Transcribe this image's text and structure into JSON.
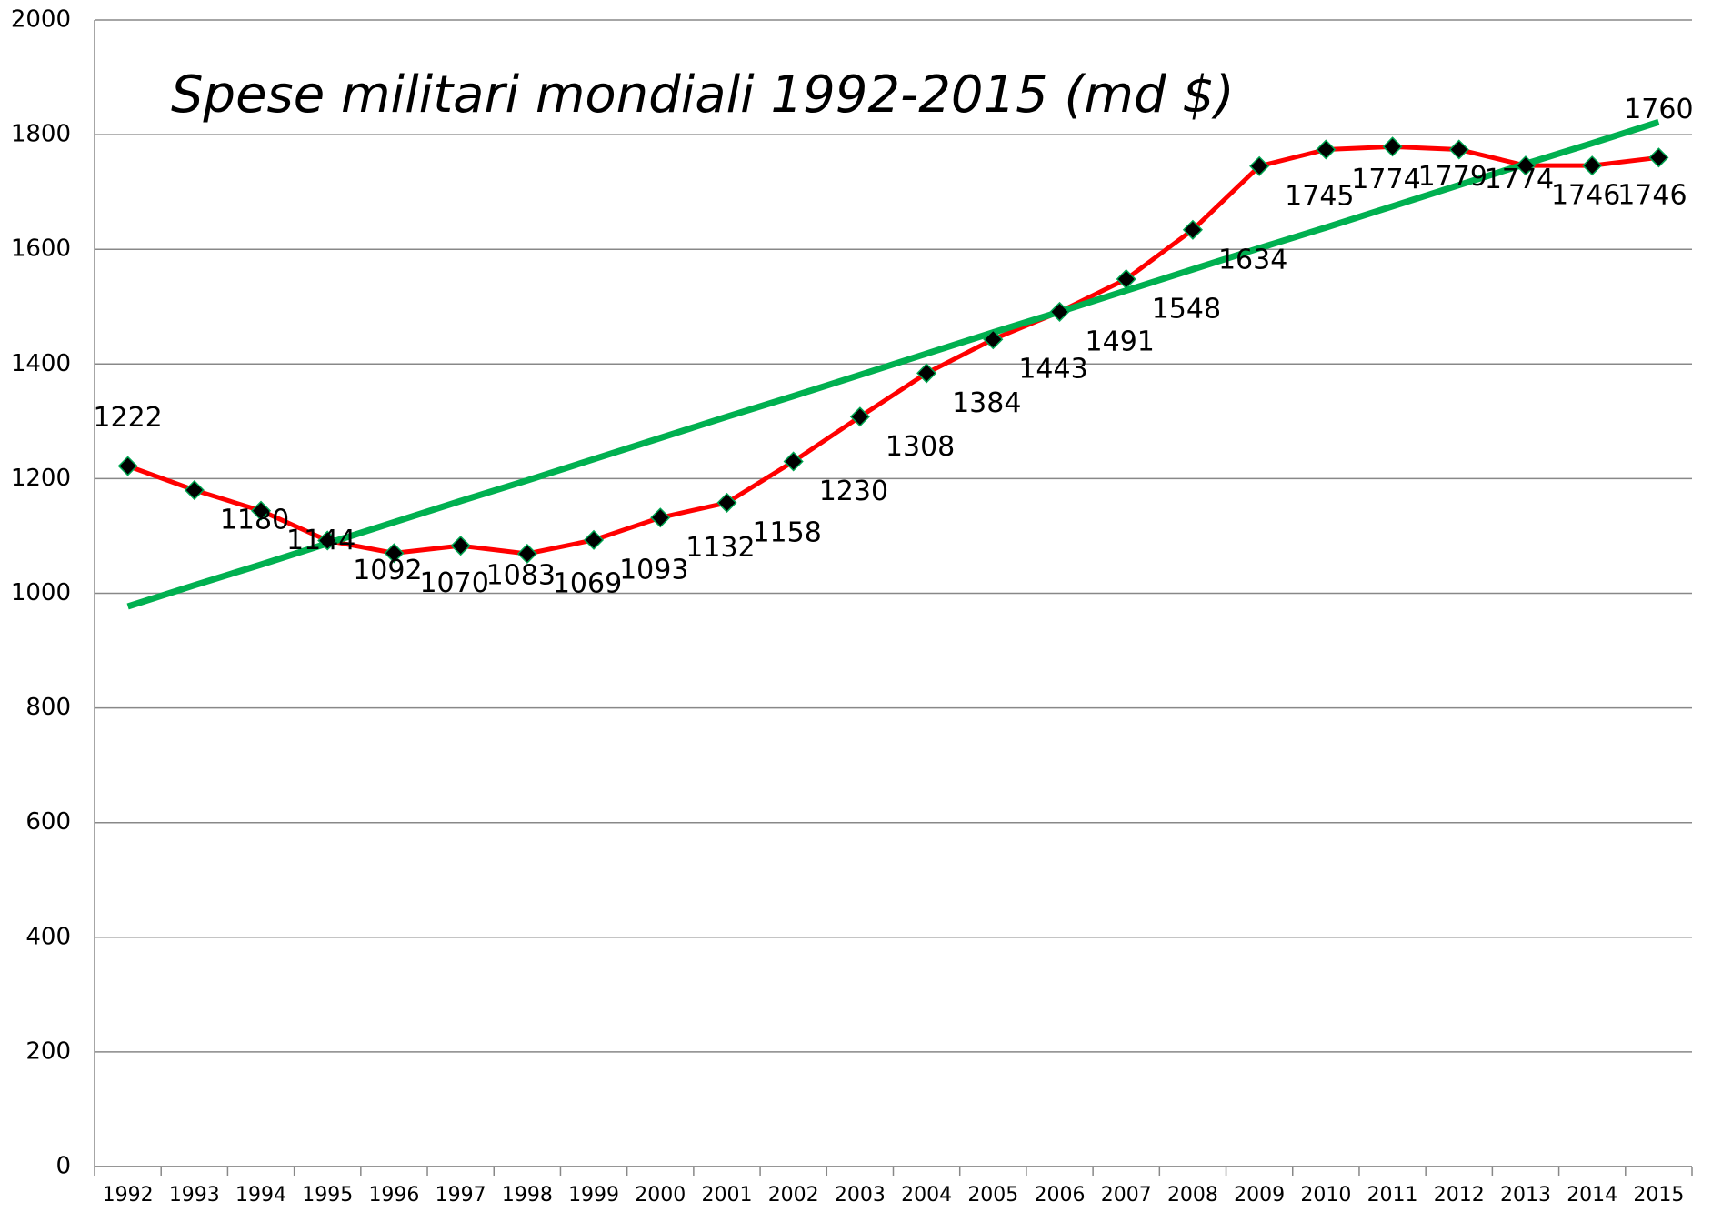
{
  "chart_data": {
    "type": "line",
    "title": "Spese militari mondiali 1992-2015 (md $)",
    "categories": [
      "1992",
      "1993",
      "1994",
      "1995",
      "1996",
      "1997",
      "1998",
      "1999",
      "2000",
      "2001",
      "2002",
      "2003",
      "2004",
      "2005",
      "2006",
      "2007",
      "2008",
      "2009",
      "2010",
      "2011",
      "2012",
      "2013",
      "2014",
      "2015"
    ],
    "series": [
      {
        "color": "#ff0000",
        "marker_color": "#000000",
        "marker_edge": "#00a651",
        "values": [
          1222,
          1180,
          1144,
          1092,
          1070,
          1083,
          1069,
          1093,
          1132,
          1158,
          1230,
          1308,
          1384,
          1443,
          1491,
          1548,
          1634,
          1745,
          1774,
          1779,
          1774,
          1746,
          1746,
          1760
        ],
        "data_labels": true
      },
      {
        "color": "#00b050",
        "values": [
          977,
          1014,
          1050,
          1087,
          1124,
          1161,
          1197,
          1234,
          1271,
          1308,
          1344,
          1381,
          1418,
          1455,
          1491,
          1528,
          1565,
          1602,
          1638,
          1675,
          1712,
          1749,
          1785,
          1822
        ],
        "data_labels": false
      }
    ],
    "ylim": [
      0,
      2000
    ],
    "yticks": [
      0,
      200,
      400,
      600,
      800,
      1000,
      1200,
      1400,
      1600,
      1800,
      2000
    ],
    "grid": true
  }
}
